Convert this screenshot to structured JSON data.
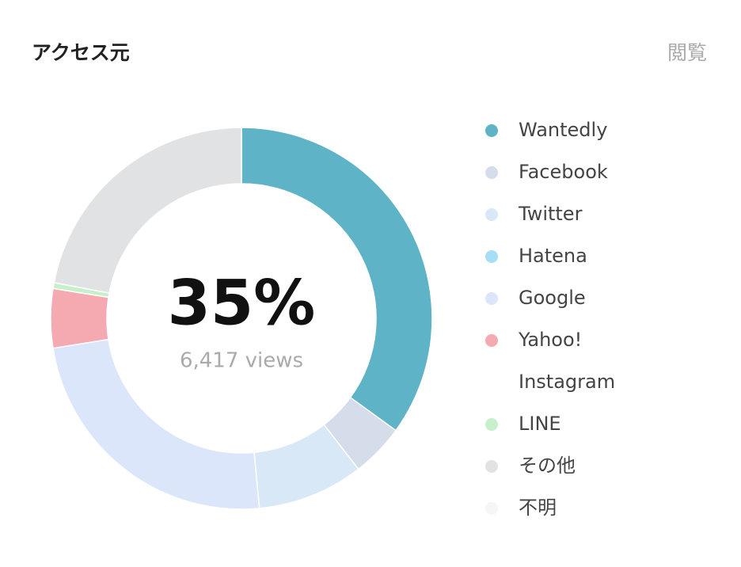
{
  "chart_data": {
    "type": "pie",
    "title": "アクセス元",
    "header_right": "閲覧",
    "center_label": "35%",
    "center_sublabel": "6,417 views",
    "categories": [
      "Wantedly",
      "Facebook",
      "Twitter",
      "Hatena",
      "Google",
      "Yahoo!",
      "Instagram",
      "LINE",
      "その他",
      "不明"
    ],
    "values": [
      35,
      4.5,
      9,
      0,
      24,
      5,
      0,
      0.5,
      22,
      0
    ],
    "colors": [
      "#5eb3c7",
      "#d5dcea",
      "#d9e8f6",
      "#a8def5",
      "#dbe6fb",
      "#f5aab1",
      "#ffffff",
      "#c6f0cb",
      "#e1e2e4",
      "#f6f6f7"
    ]
  }
}
